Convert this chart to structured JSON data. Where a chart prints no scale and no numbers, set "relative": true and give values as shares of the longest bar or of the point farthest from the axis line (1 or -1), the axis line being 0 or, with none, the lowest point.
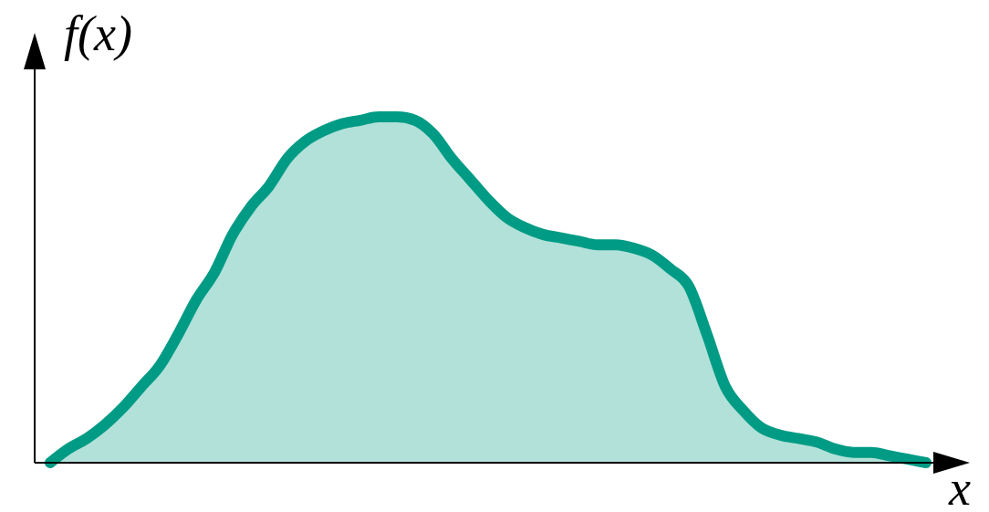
{
  "chart_data": {
    "type": "area",
    "relative": true,
    "xlabel": "x",
    "ylabel": "f(x)",
    "categories": [
      null,
      null,
      null,
      null,
      null,
      null,
      null,
      null,
      null,
      null,
      null,
      null,
      null,
      null,
      null,
      null,
      null,
      null,
      null,
      null,
      null,
      null,
      null,
      null,
      null,
      null,
      null,
      null,
      null,
      null,
      null,
      null,
      null,
      null,
      null,
      null,
      null,
      null,
      null,
      null,
      null,
      null,
      null,
      null,
      null,
      null,
      null,
      null,
      null
    ],
    "series": [
      {
        "color": "#009b84",
        "values": [
          0,
          0.04,
          0.07,
          0.11,
          0.16,
          0.22,
          0.28,
          0.37,
          0.47,
          0.55,
          0.66,
          0.74,
          0.8,
          0.88,
          0.93,
          0.96,
          0.98,
          0.99,
          1,
          1,
          0.99,
          0.95,
          0.88,
          0.82,
          0.76,
          0.71,
          0.68,
          0.66,
          0.65,
          0.64,
          0.63,
          0.63,
          0.62,
          0.6,
          0.56,
          0.51,
          0.37,
          0.22,
          0.15,
          0.1,
          0.08,
          0.07,
          0.06,
          0.04,
          0.03,
          0.03,
          0.02,
          0.01,
          0
        ]
      }
    ],
    "grid": false
  }
}
